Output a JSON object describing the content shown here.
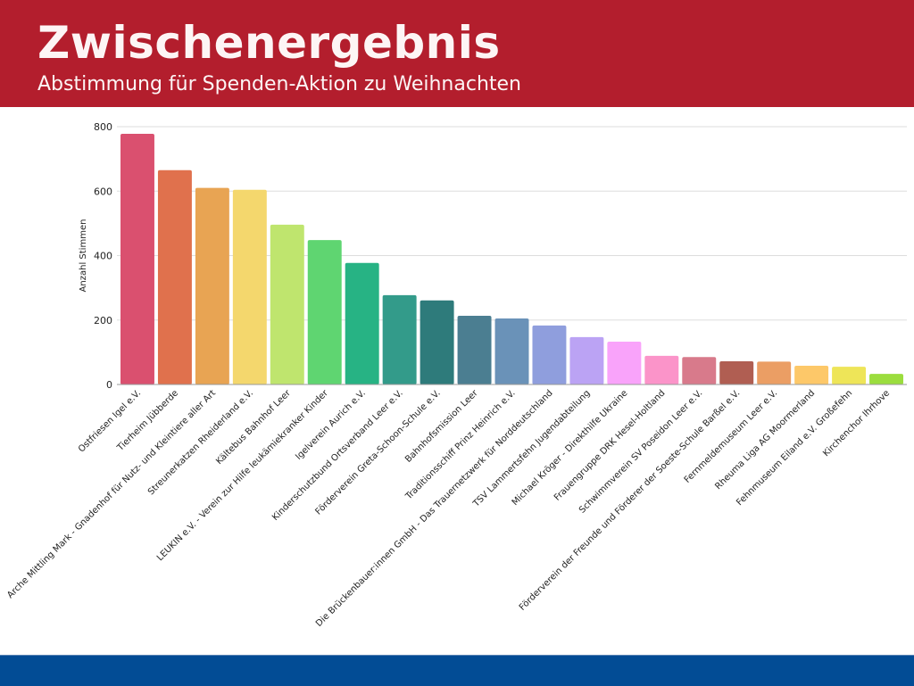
{
  "header": {
    "title": "Zwischenergebnis",
    "subtitle": "Abstimmung für Spenden-Aktion zu Weihnachten"
  },
  "colors": {
    "header_bg": "#b31e2d",
    "footer_bg": "#024c95"
  },
  "chart_data": {
    "type": "bar",
    "title": "",
    "xlabel": "",
    "ylabel": "Anzahl Stimmen",
    "ylim": [
      0,
      800
    ],
    "yticks": [
      0,
      200,
      400,
      600,
      800
    ],
    "grid": true,
    "legend": "none",
    "categories": [
      "Ostfriesen Igel e.V.",
      "Tierheim Jübberde",
      "Arche Mittling Mark - Gnadenhof für Nutz- und Kleintiere aller Art",
      "Streunerkatzen Rheiderland e.V.",
      "Kältebus Bahnhof Leer",
      "LEUKIN e.V. - Verein zur Hilfe leukämiekranker Kinder",
      "Igelverein Aurich e.V.",
      "Kinderschutzbund Ortsverband Leer e.V.",
      "Förderverein Greta-Schoon-Schule e.V.",
      "Bahnhofsmission Leer",
      "Traditionsschiff Prinz Heinrich e.V.",
      "Die Brückenbauer:innen GmbH - Das Trauernetzwerk für Norddeutschland",
      "TSV Lammertsfehn Jugendabteilung",
      "Michael Kröger - Direkthilfe Ukraine",
      "Frauengruppe DRK Hesel-Holtland",
      "Schwimmverein SV Poseidon Leer e.V.",
      "Förderverein der Freunde und Förderer der Soeste-Schule Barßel e.V.",
      "Fernmeldemuseum Leer e.V.",
      "Rheuma Liga AG Moormerland",
      "Fehnmuseum Eiland e.V. Großefehn",
      "Kirchenchor Ihrhove"
    ],
    "values": [
      778,
      665,
      610,
      604,
      496,
      448,
      377,
      277,
      261,
      213,
      205,
      183,
      147,
      133,
      89,
      85,
      72,
      71,
      58,
      55,
      33
    ],
    "bar_colors": [
      "#da506f",
      "#e0714d",
      "#e8a453",
      "#f4d76d",
      "#bfe56e",
      "#5fd571",
      "#27b384",
      "#339b8a",
      "#2e7b7b",
      "#4b7e91",
      "#6a92b8",
      "#8f9edd",
      "#bba3f4",
      "#f9a3fa",
      "#fb94c9",
      "#d87a8b",
      "#b05e52",
      "#eb9e64",
      "#fdc869",
      "#eee558",
      "#9bdd3e"
    ]
  }
}
